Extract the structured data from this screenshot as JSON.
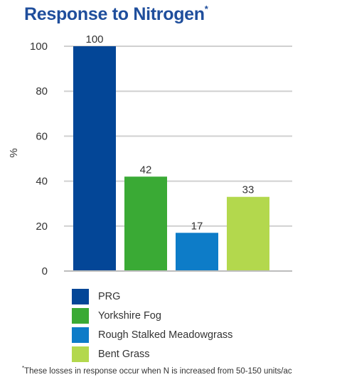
{
  "title": "Response to Nitrogen",
  "title_mark": "*",
  "footnote_mark": "*",
  "footnote": "These losses in response occur when N is increased from 50-150 units/ac",
  "chart_data": {
    "type": "bar",
    "title": "Response to Nitrogen",
    "xlabel": "",
    "ylabel": "%",
    "ylim": [
      0,
      100
    ],
    "yticks": [
      0,
      20,
      40,
      60,
      80,
      100
    ],
    "grid": true,
    "legend_position": "bottom",
    "categories": [
      "PRG",
      "Yorkshire Fog",
      "Rough Stalked Meadowgrass",
      "Bent Grass"
    ],
    "values": [
      100,
      42,
      17,
      33
    ],
    "colors": [
      "#034697",
      "#3aaa35",
      "#0d7cc8",
      "#b3d84d"
    ]
  }
}
